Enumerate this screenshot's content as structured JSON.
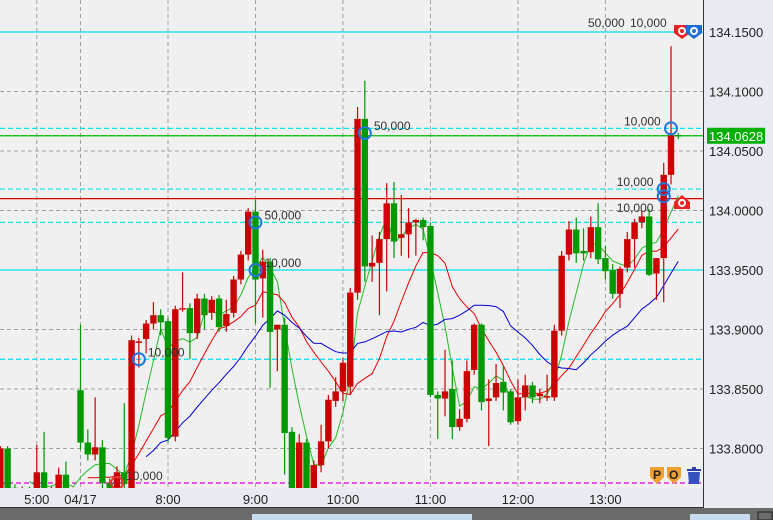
{
  "chart_data": {
    "type": "candlestick",
    "title": "",
    "price_ticks": [
      "134.1500",
      "134.1000",
      "134.0500",
      "134.0000",
      "133.9500",
      "133.9000",
      "133.8500",
      "133.8000"
    ],
    "ylim": [
      133.765,
      134.178
    ],
    "grid": true,
    "current_price": "134.0628",
    "time_ticks": [
      {
        "label": "5:00",
        "time": "5:00"
      },
      {
        "label": "04/17",
        "time": "7:00"
      },
      {
        "label": "8:00",
        "time": "8:00"
      },
      {
        "label": "9:00",
        "time": "9:00"
      },
      {
        "label": "10:00",
        "time": "10:00"
      },
      {
        "label": "11:00",
        "time": "11:00"
      },
      {
        "label": "12:00",
        "time": "12:00"
      },
      {
        "label": "13:00",
        "time": "13:00"
      }
    ],
    "candle_fields": [
      "time",
      "open",
      "high",
      "low",
      "close"
    ],
    "candles": [
      [
        "4:35",
        133.765,
        133.802,
        133.76,
        133.8
      ],
      [
        "4:40",
        133.8,
        133.802,
        133.762,
        133.765
      ],
      [
        "4:45",
        133.767,
        133.77,
        133.762,
        133.765
      ],
      [
        "4:50",
        133.765,
        133.768,
        133.762,
        133.766
      ],
      [
        "4:55",
        133.766,
        133.768,
        133.763,
        133.765
      ],
      [
        "5:00",
        133.765,
        133.803,
        133.762,
        133.78
      ],
      [
        "5:05",
        133.78,
        133.814,
        133.763,
        133.765
      ],
      [
        "5:10",
        133.765,
        133.768,
        133.762,
        133.766
      ],
      [
        "5:15",
        133.765,
        133.784,
        133.762,
        133.778
      ],
      [
        "5:20",
        133.778,
        133.789,
        133.762,
        133.765
      ],
      [
        "5:25",
        133.765,
        133.767,
        133.763,
        133.765
      ],
      [
        "7:00",
        133.849,
        133.904,
        133.799,
        133.805
      ],
      [
        "7:05",
        133.805,
        133.816,
        133.79,
        133.795
      ],
      [
        "7:10",
        133.795,
        133.843,
        133.79,
        133.801
      ],
      [
        "7:15",
        133.801,
        133.807,
        133.765,
        133.771
      ],
      [
        "7:20",
        133.771,
        133.775,
        133.762,
        133.765
      ],
      [
        "7:25",
        133.765,
        133.785,
        133.762,
        133.78
      ],
      [
        "7:30",
        133.78,
        133.838,
        133.762,
        133.77
      ],
      [
        "7:35",
        133.765,
        133.895,
        133.762,
        133.891
      ],
      [
        "7:40",
        133.889,
        133.893,
        133.868,
        133.89
      ],
      [
        "7:45",
        133.892,
        133.908,
        133.88,
        133.905
      ],
      [
        "7:50",
        133.905,
        133.923,
        133.9,
        133.912
      ],
      [
        "7:55",
        133.912,
        133.917,
        133.895,
        133.906
      ],
      [
        "8:00",
        133.907,
        133.91,
        133.805,
        133.809
      ],
      [
        "8:05",
        133.81,
        133.92,
        133.806,
        133.917
      ],
      [
        "8:10",
        133.917,
        133.948,
        133.915,
        133.918
      ],
      [
        "8:15",
        133.918,
        133.922,
        133.875,
        133.897
      ],
      [
        "8:20",
        133.897,
        133.93,
        133.892,
        133.926
      ],
      [
        "8:25",
        133.926,
        133.93,
        133.9,
        133.912
      ],
      [
        "8:30",
        133.914,
        133.928,
        133.908,
        133.925
      ],
      [
        "8:35",
        133.926,
        133.929,
        133.898,
        133.902
      ],
      [
        "8:40",
        133.903,
        133.925,
        133.898,
        133.913
      ],
      [
        "8:45",
        133.914,
        133.945,
        133.91,
        133.942
      ],
      [
        "8:50",
        133.942,
        133.966,
        133.938,
        133.963
      ],
      [
        "8:55",
        133.963,
        134.002,
        133.958,
        133.999
      ],
      [
        "9:00",
        133.999,
        134.009,
        133.905,
        133.942
      ],
      [
        "9:05",
        133.943,
        133.967,
        133.91,
        133.957
      ],
      [
        "9:10",
        133.957,
        133.96,
        133.851,
        133.898
      ],
      [
        "9:15",
        133.9,
        133.904,
        133.865,
        133.904
      ],
      [
        "9:20",
        133.904,
        133.91,
        133.778,
        133.813
      ],
      [
        "9:25",
        133.814,
        133.818,
        133.76,
        133.765
      ],
      [
        "9:30",
        133.765,
        133.812,
        133.76,
        133.805
      ],
      [
        "9:35",
        133.805,
        133.808,
        133.76,
        133.765
      ],
      [
        "9:40",
        133.765,
        133.79,
        133.76,
        133.786
      ],
      [
        "9:45",
        133.786,
        133.82,
        133.78,
        133.806
      ],
      [
        "9:50",
        133.806,
        133.845,
        133.8,
        133.841
      ],
      [
        "9:55",
        133.84,
        133.86,
        133.835,
        133.848
      ],
      [
        "10:00",
        133.848,
        133.876,
        133.84,
        133.872
      ],
      [
        "10:05",
        133.852,
        133.935,
        133.845,
        133.931
      ],
      [
        "10:10",
        133.931,
        134.087,
        133.925,
        134.077
      ],
      [
        "10:15",
        134.077,
        134.109,
        133.94,
        133.953
      ],
      [
        "10:20",
        133.953,
        133.979,
        133.94,
        133.956
      ],
      [
        "10:25",
        133.956,
        133.982,
        133.912,
        133.976
      ],
      [
        "10:30",
        133.976,
        134.023,
        133.932,
        134.006
      ],
      [
        "10:35",
        134.006,
        134.024,
        133.96,
        133.974
      ],
      [
        "10:40",
        133.977,
        134.013,
        133.962,
        133.98
      ],
      [
        "10:45",
        133.98,
        134.002,
        133.96,
        133.99
      ],
      [
        "10:50",
        133.99,
        133.993,
        133.962,
        133.992
      ],
      [
        "10:55",
        133.992,
        133.994,
        133.975,
        133.986
      ],
      [
        "11:00",
        133.987,
        133.99,
        133.843,
        133.845
      ],
      [
        "11:05",
        133.845,
        133.848,
        133.808,
        133.842
      ],
      [
        "11:10",
        133.842,
        133.883,
        133.827,
        133.848
      ],
      [
        "11:15",
        133.85,
        133.874,
        133.808,
        133.818
      ],
      [
        "11:20",
        133.818,
        133.833,
        133.815,
        133.825
      ],
      [
        "11:25",
        133.825,
        133.874,
        133.822,
        133.865
      ],
      [
        "11:30",
        133.866,
        133.905,
        133.862,
        133.904
      ],
      [
        "11:35",
        133.904,
        133.905,
        133.832,
        133.839
      ],
      [
        "11:40",
        133.84,
        133.858,
        133.802,
        133.842
      ],
      [
        "11:45",
        133.843,
        133.871,
        133.84,
        133.855
      ],
      [
        "11:50",
        133.856,
        133.87,
        133.832,
        133.847
      ],
      [
        "11:55",
        133.848,
        133.85,
        133.82,
        133.822
      ],
      [
        "12:00",
        133.823,
        133.858,
        133.82,
        133.843
      ],
      [
        "12:05",
        133.843,
        133.862,
        133.832,
        133.853
      ],
      [
        "12:10",
        133.853,
        133.856,
        133.838,
        133.843
      ],
      [
        "12:15",
        133.844,
        133.85,
        133.838,
        133.846
      ],
      [
        "12:20",
        133.843,
        133.862,
        133.84,
        133.844
      ],
      [
        "12:25",
        133.843,
        133.904,
        133.84,
        133.899
      ],
      [
        "12:30",
        133.899,
        133.966,
        133.895,
        133.962
      ],
      [
        "12:35",
        133.963,
        133.991,
        133.958,
        133.984
      ],
      [
        "12:40",
        133.984,
        133.994,
        133.956,
        133.964
      ],
      [
        "12:45",
        133.966,
        133.985,
        133.958,
        133.964
      ],
      [
        "12:50",
        133.965,
        133.995,
        133.96,
        133.986
      ],
      [
        "12:55",
        133.986,
        134.006,
        133.955,
        133.959
      ],
      [
        "13:00",
        133.96,
        133.97,
        133.942,
        133.949
      ],
      [
        "13:05",
        133.95,
        133.955,
        133.926,
        133.93
      ],
      [
        "13:10",
        133.93,
        133.953,
        133.918,
        133.951
      ],
      [
        "13:15",
        133.952,
        133.982,
        133.948,
        133.976
      ],
      [
        "13:20",
        133.976,
        133.993,
        133.952,
        133.99
      ],
      [
        "13:25",
        133.99,
        134.0,
        133.985,
        133.995
      ],
      [
        "13:30",
        133.995,
        134.001,
        133.945,
        133.946
      ],
      [
        "13:35",
        133.947,
        133.96,
        133.925,
        133.96
      ],
      [
        "13:40",
        133.96,
        134.04,
        133.923,
        134.03
      ],
      [
        "13:45",
        134.03,
        134.138,
        134.022,
        134.063
      ],
      [
        "13:50",
        134.0635,
        134.065,
        134.06,
        134.0628
      ]
    ],
    "moving_averages": [
      {
        "color": "#22bb22"
      },
      {
        "color": "#ee0000"
      },
      {
        "color": "#0000dd"
      }
    ],
    "horizontal_lines": [
      {
        "price": 134.15,
        "color": "#00e0ee",
        "style": "solid"
      },
      {
        "price": 134.069,
        "color": "#00e0ee",
        "style": "dashed"
      },
      {
        "price": 134.0628,
        "color": "#00bb00",
        "style": "solid"
      },
      {
        "price": 134.018,
        "color": "#00e0ee",
        "style": "dashed"
      },
      {
        "price": 134.01,
        "color": "#dd0000",
        "style": "solid"
      },
      {
        "price": 133.99,
        "color": "#00e0ee",
        "style": "dashed"
      },
      {
        "price": 133.95,
        "color": "#00e0ee",
        "style": "solid"
      },
      {
        "price": 133.875,
        "color": "#00e0ee",
        "style": "dashed"
      },
      {
        "price": 133.771,
        "color": "#dd00dd",
        "style": "dashed"
      }
    ],
    "position_markers": [
      {
        "time": "7:25",
        "price": 133.771,
        "label": "10,000",
        "color": "#ee3333"
      },
      {
        "time": "7:40",
        "price": 133.875,
        "label": "10,000",
        "color": "#2277dd"
      },
      {
        "time": "9:00",
        "price": 133.99,
        "label": "50,000",
        "color": "#2277dd"
      },
      {
        "time": "9:00",
        "price": 133.95,
        "label": "10,000",
        "color": "#2277dd"
      },
      {
        "time": "10:15",
        "price": 134.065,
        "label": "50,000",
        "color": "#2277dd"
      },
      {
        "time": "13:45",
        "price": 134.069,
        "label": "10,000",
        "color": "#2277dd"
      },
      {
        "time": "13:40",
        "price": 134.018,
        "label": "10,000",
        "color": "#2277dd"
      },
      {
        "time": "13:40",
        "price": 134.012,
        "label": "10,000",
        "color": "#2277dd"
      }
    ],
    "top_order_labels": [
      "50,000",
      "10,000"
    ],
    "colors": {
      "up": "#cc0000",
      "down": "#009900",
      "background": "#f0f0f0",
      "axis_panel": "#e9ebf2",
      "current_price_bg": "#00b000"
    }
  },
  "toolbar": {
    "p_label": "P",
    "o_label": "O"
  }
}
